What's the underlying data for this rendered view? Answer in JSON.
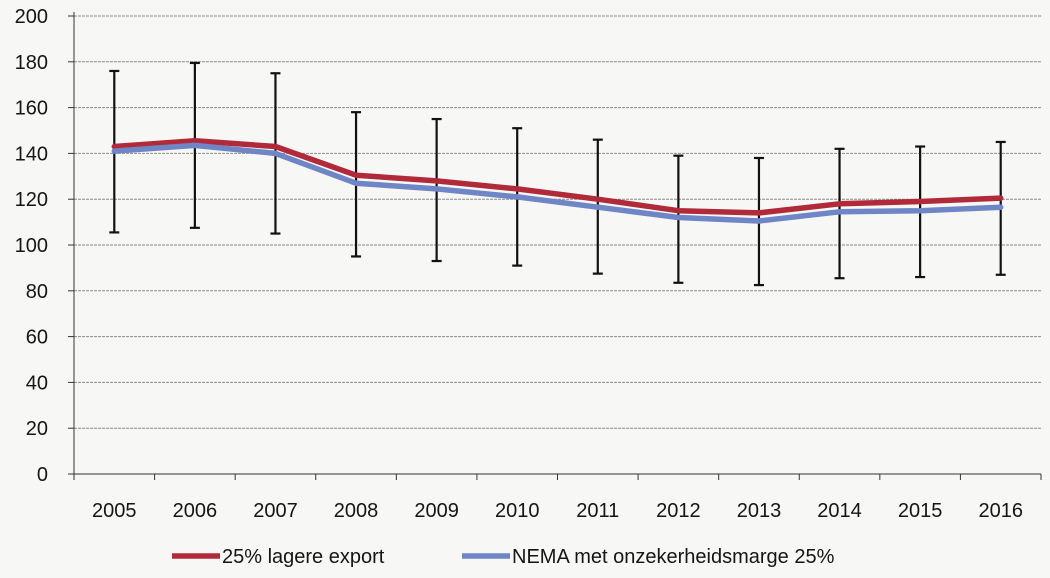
{
  "chart_data": {
    "type": "line",
    "title_fragment": "                   ",
    "xlabel": "",
    "ylabel": "",
    "x": [
      "2005",
      "2006",
      "2007",
      "2008",
      "2009",
      "2010",
      "2011",
      "2012",
      "2013",
      "2014",
      "2015",
      "2016"
    ],
    "y_ticks": [
      "0",
      "20",
      "40",
      "60",
      "80",
      "100",
      "120",
      "140",
      "160",
      "180",
      "200"
    ],
    "ylim": [
      0,
      200
    ],
    "grid": "horizontal",
    "legend": "bottom",
    "error_bars": {
      "center": [
        141,
        144,
        140,
        127,
        124,
        121,
        117,
        111,
        110,
        114,
        115,
        116
      ],
      "low": [
        105.5,
        107.5,
        105,
        95,
        93,
        91,
        87.5,
        83.5,
        82.5,
        85.5,
        86,
        87
      ],
      "high": [
        176,
        179.5,
        175,
        158,
        155,
        151,
        146,
        139,
        138,
        142,
        143,
        145
      ]
    },
    "series": [
      {
        "name": "25% lagere export",
        "color": "#b02a3a",
        "values": [
          143,
          145.5,
          143,
          130.5,
          128,
          124.5,
          120,
          115,
          114,
          118,
          119,
          120.5
        ]
      },
      {
        "name": "NEMA met onzekerheidsmarge 25%",
        "color": "#6f86c6",
        "values": [
          141,
          143.5,
          140,
          127,
          124.5,
          121,
          116.5,
          112,
          110.5,
          114.5,
          115,
          116.5
        ]
      }
    ],
    "colors": {
      "error_bar": "#111111",
      "grid": "#8a8a8a",
      "axis": "#333333",
      "background": "#f7f7f6"
    }
  }
}
